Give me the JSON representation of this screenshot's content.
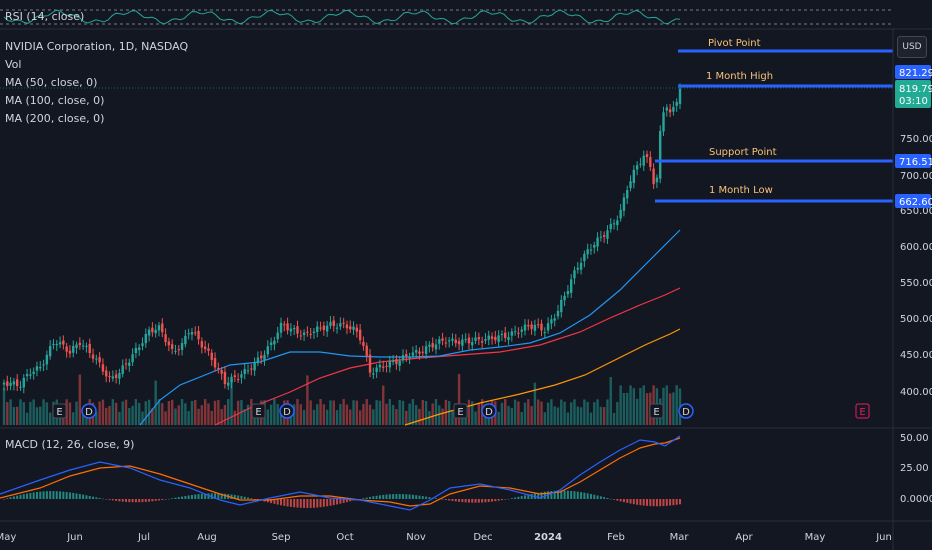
{
  "rsi_legend": "RSI (14, close)",
  "main_legend": {
    "symbol": "NVIDIA Corporation, 1D, NASDAQ",
    "vol": "Vol",
    "ma50": "MA (50, close, 0)",
    "ma100": "MA (100, close, 0)",
    "ma200": "MA (200, close, 0)"
  },
  "macd_legend": "MACD (12, 26, close, 9)",
  "currency_button": "USD",
  "price_axis": [
    "750.00",
    "700.00",
    "650.00",
    "600.00",
    "550.00",
    "500.00",
    "450.00",
    "400.00"
  ],
  "macd_axis": [
    "50.00",
    "25.00",
    "0.0000"
  ],
  "time_axis": [
    "May",
    "Jun",
    "Jul",
    "Aug",
    "Sep",
    "Oct",
    "Nov",
    "Dec",
    "2024",
    "Feb",
    "Mar",
    "Apr",
    "May",
    "Jun"
  ],
  "price_tags": {
    "month_high": "821.29",
    "last_price": "819.79",
    "countdown": "03:10",
    "support": "716.51",
    "month_low": "662.60"
  },
  "level_labels": {
    "pivot": "Pivot Point",
    "month_high": "1 Month High",
    "support": "Support Point",
    "month_low": "1 Month Low"
  },
  "event_markers": [
    "E",
    "D",
    "E",
    "D",
    "E",
    "D",
    "E",
    "D",
    "E"
  ],
  "colors": {
    "background": "#131722",
    "up": "#26a69a",
    "down": "#ef5350",
    "level_line": "#2962ff",
    "ma50": "#2196f3",
    "ma100": "#f23645",
    "ma200": "#ff9800",
    "level_text": "#f7c27a",
    "last_price_tag": "#26a69a"
  }
}
